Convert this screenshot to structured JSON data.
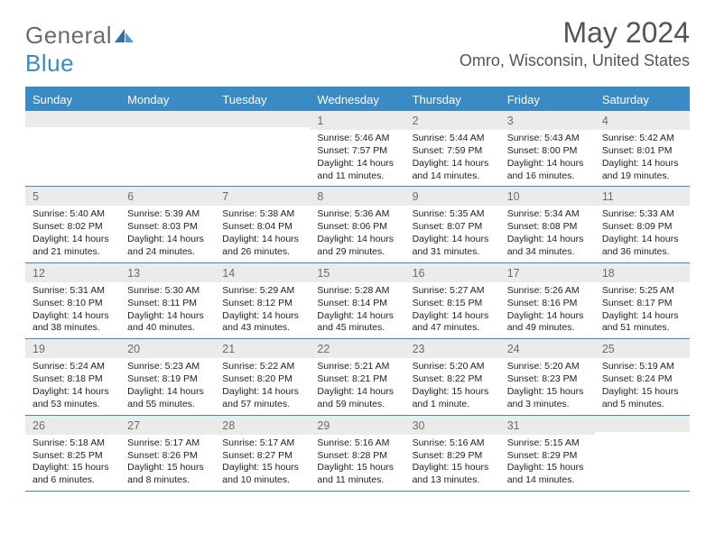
{
  "brand": {
    "text_a": "General",
    "text_b": "Blue"
  },
  "title": "May 2024",
  "location": "Omro, Wisconsin, United States",
  "colors": {
    "accent": "#3a8ac6",
    "header_text": "#555555",
    "logo_gray": "#6b6b6b",
    "daynum_bg": "#ebebeb",
    "body_text": "#222222",
    "background": "#ffffff"
  },
  "typography": {
    "month_title_fontsize": 32,
    "location_fontsize": 18,
    "dow_fontsize": 13,
    "daynum_fontsize": 12.5,
    "details_fontsize": 10.5
  },
  "calendar": {
    "type": "table",
    "columns": [
      "Sunday",
      "Monday",
      "Tuesday",
      "Wednesday",
      "Thursday",
      "Friday",
      "Saturday"
    ],
    "weeks": [
      [
        null,
        null,
        null,
        {
          "d": "1",
          "sr": "5:46 AM",
          "ss": "7:57 PM",
          "dl": "14 hours and 11 minutes."
        },
        {
          "d": "2",
          "sr": "5:44 AM",
          "ss": "7:59 PM",
          "dl": "14 hours and 14 minutes."
        },
        {
          "d": "3",
          "sr": "5:43 AM",
          "ss": "8:00 PM",
          "dl": "14 hours and 16 minutes."
        },
        {
          "d": "4",
          "sr": "5:42 AM",
          "ss": "8:01 PM",
          "dl": "14 hours and 19 minutes."
        }
      ],
      [
        {
          "d": "5",
          "sr": "5:40 AM",
          "ss": "8:02 PM",
          "dl": "14 hours and 21 minutes."
        },
        {
          "d": "6",
          "sr": "5:39 AM",
          "ss": "8:03 PM",
          "dl": "14 hours and 24 minutes."
        },
        {
          "d": "7",
          "sr": "5:38 AM",
          "ss": "8:04 PM",
          "dl": "14 hours and 26 minutes."
        },
        {
          "d": "8",
          "sr": "5:36 AM",
          "ss": "8:06 PM",
          "dl": "14 hours and 29 minutes."
        },
        {
          "d": "9",
          "sr": "5:35 AM",
          "ss": "8:07 PM",
          "dl": "14 hours and 31 minutes."
        },
        {
          "d": "10",
          "sr": "5:34 AM",
          "ss": "8:08 PM",
          "dl": "14 hours and 34 minutes."
        },
        {
          "d": "11",
          "sr": "5:33 AM",
          "ss": "8:09 PM",
          "dl": "14 hours and 36 minutes."
        }
      ],
      [
        {
          "d": "12",
          "sr": "5:31 AM",
          "ss": "8:10 PM",
          "dl": "14 hours and 38 minutes."
        },
        {
          "d": "13",
          "sr": "5:30 AM",
          "ss": "8:11 PM",
          "dl": "14 hours and 40 minutes."
        },
        {
          "d": "14",
          "sr": "5:29 AM",
          "ss": "8:12 PM",
          "dl": "14 hours and 43 minutes."
        },
        {
          "d": "15",
          "sr": "5:28 AM",
          "ss": "8:14 PM",
          "dl": "14 hours and 45 minutes."
        },
        {
          "d": "16",
          "sr": "5:27 AM",
          "ss": "8:15 PM",
          "dl": "14 hours and 47 minutes."
        },
        {
          "d": "17",
          "sr": "5:26 AM",
          "ss": "8:16 PM",
          "dl": "14 hours and 49 minutes."
        },
        {
          "d": "18",
          "sr": "5:25 AM",
          "ss": "8:17 PM",
          "dl": "14 hours and 51 minutes."
        }
      ],
      [
        {
          "d": "19",
          "sr": "5:24 AM",
          "ss": "8:18 PM",
          "dl": "14 hours and 53 minutes."
        },
        {
          "d": "20",
          "sr": "5:23 AM",
          "ss": "8:19 PM",
          "dl": "14 hours and 55 minutes."
        },
        {
          "d": "21",
          "sr": "5:22 AM",
          "ss": "8:20 PM",
          "dl": "14 hours and 57 minutes."
        },
        {
          "d": "22",
          "sr": "5:21 AM",
          "ss": "8:21 PM",
          "dl": "14 hours and 59 minutes."
        },
        {
          "d": "23",
          "sr": "5:20 AM",
          "ss": "8:22 PM",
          "dl": "15 hours and 1 minute."
        },
        {
          "d": "24",
          "sr": "5:20 AM",
          "ss": "8:23 PM",
          "dl": "15 hours and 3 minutes."
        },
        {
          "d": "25",
          "sr": "5:19 AM",
          "ss": "8:24 PM",
          "dl": "15 hours and 5 minutes."
        }
      ],
      [
        {
          "d": "26",
          "sr": "5:18 AM",
          "ss": "8:25 PM",
          "dl": "15 hours and 6 minutes."
        },
        {
          "d": "27",
          "sr": "5:17 AM",
          "ss": "8:26 PM",
          "dl": "15 hours and 8 minutes."
        },
        {
          "d": "28",
          "sr": "5:17 AM",
          "ss": "8:27 PM",
          "dl": "15 hours and 10 minutes."
        },
        {
          "d": "29",
          "sr": "5:16 AM",
          "ss": "8:28 PM",
          "dl": "15 hours and 11 minutes."
        },
        {
          "d": "30",
          "sr": "5:16 AM",
          "ss": "8:29 PM",
          "dl": "15 hours and 13 minutes."
        },
        {
          "d": "31",
          "sr": "5:15 AM",
          "ss": "8:29 PM",
          "dl": "15 hours and 14 minutes."
        },
        null
      ]
    ],
    "labels": {
      "sunrise": "Sunrise:",
      "sunset": "Sunset:",
      "daylight": "Daylight:"
    }
  }
}
